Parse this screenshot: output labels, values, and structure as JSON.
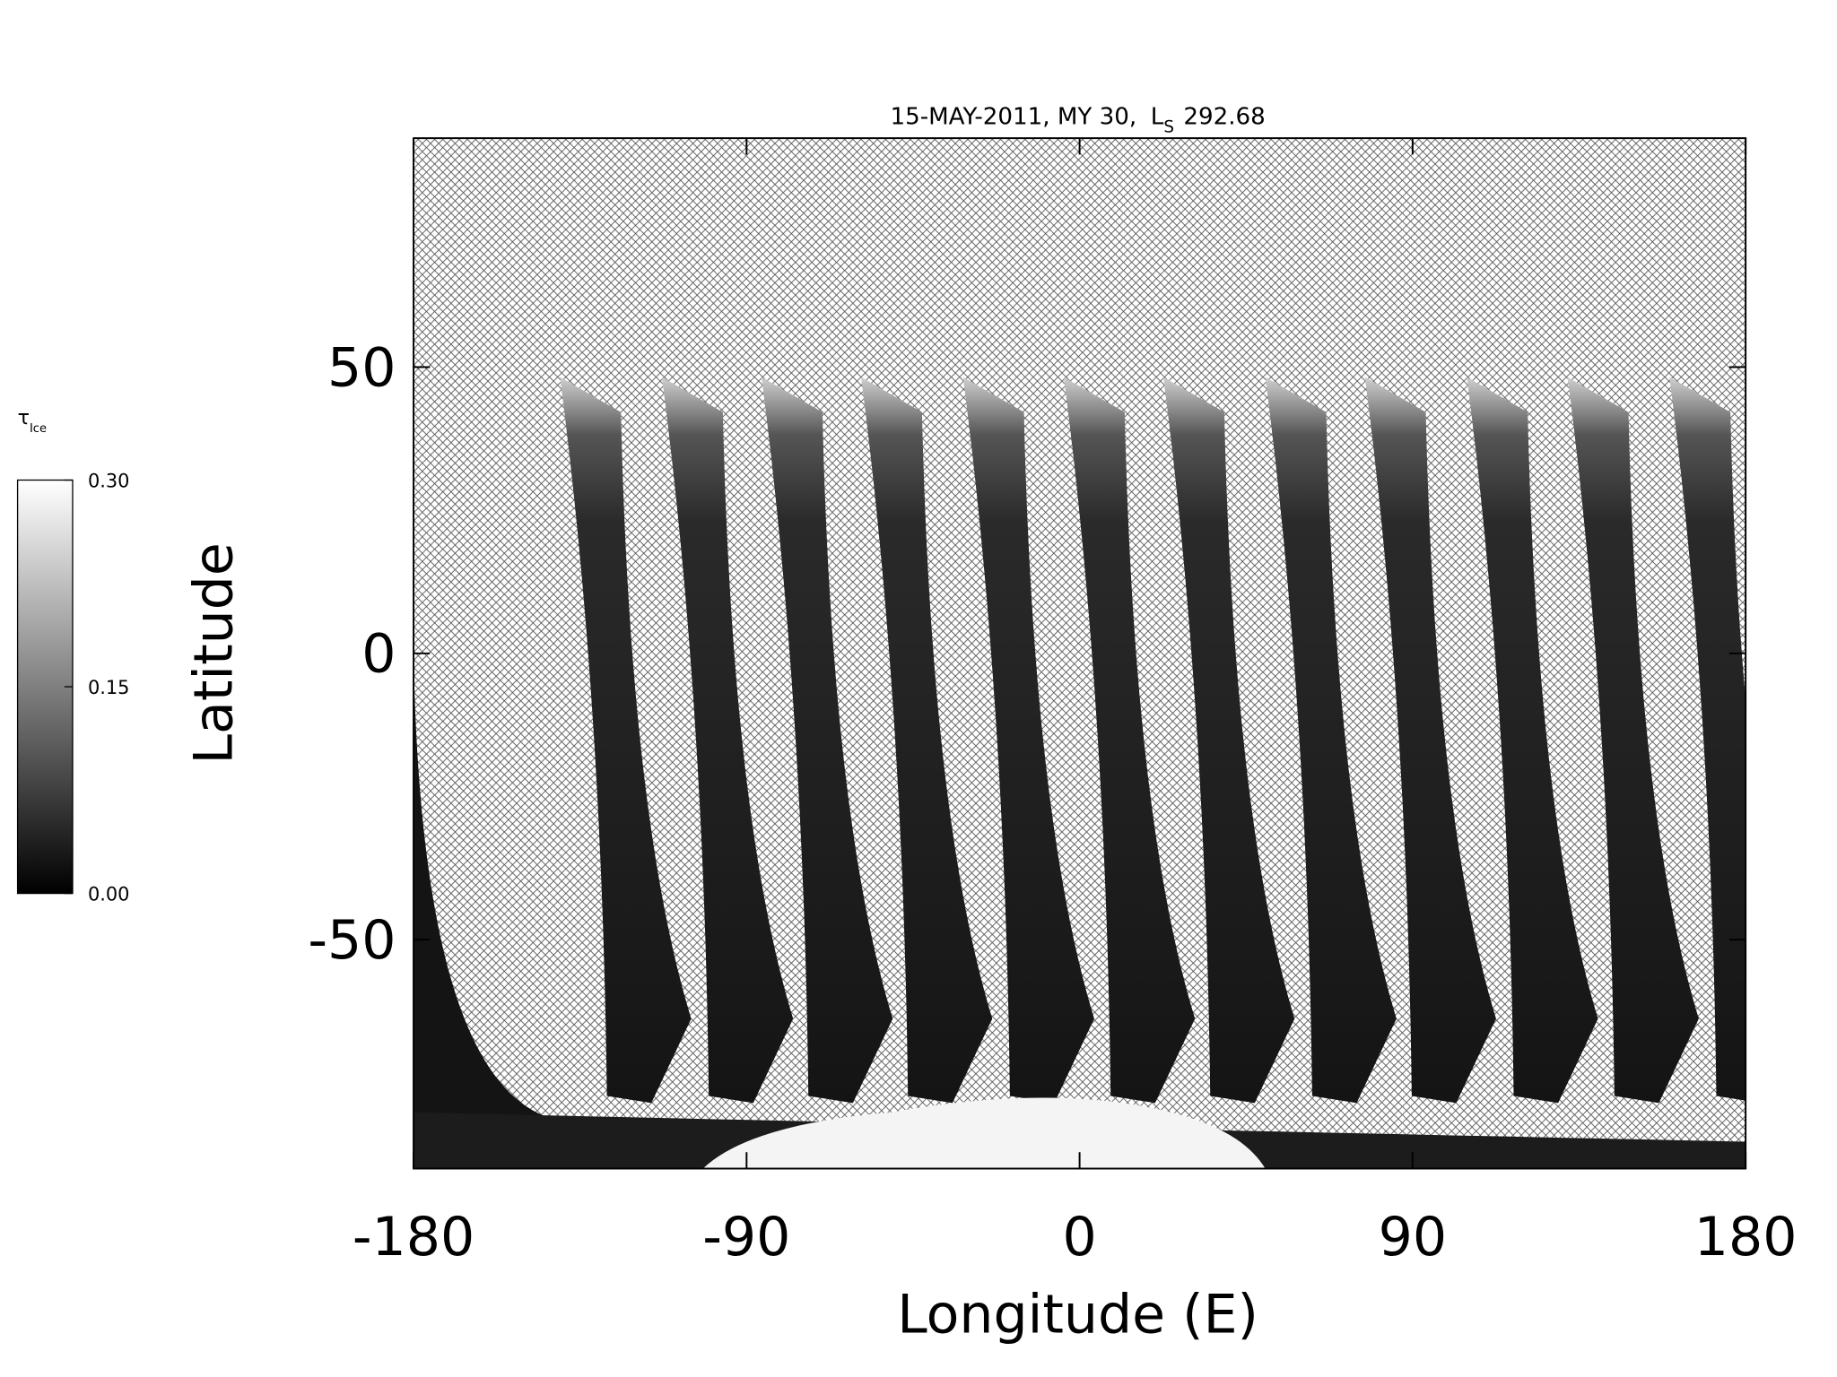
{
  "chart_data": {
    "type": "map",
    "title": {
      "text": "15-MAY-2011, MY 30,",
      "ls_symbol": "L",
      "ls_subscript": "S",
      "ls_value": "292.68"
    },
    "x_label": "Longitude (E)",
    "y_label": "Latitude",
    "xlim": [
      -180,
      180
    ],
    "xticks": [
      -180,
      -90,
      0,
      90,
      180
    ],
    "ylim": [
      -90,
      90
    ],
    "yticks": [
      -50,
      0,
      50
    ],
    "colorbar": {
      "label_symbol": "τ",
      "label_subscript": "Ice",
      "lim": [
        0,
        0.3
      ],
      "ticks": [
        {
          "value": 0,
          "label": "0.00"
        },
        {
          "value": 0.15,
          "label": "0.15"
        },
        {
          "value": 0.3,
          "label": "0.30"
        }
      ]
    }
  }
}
